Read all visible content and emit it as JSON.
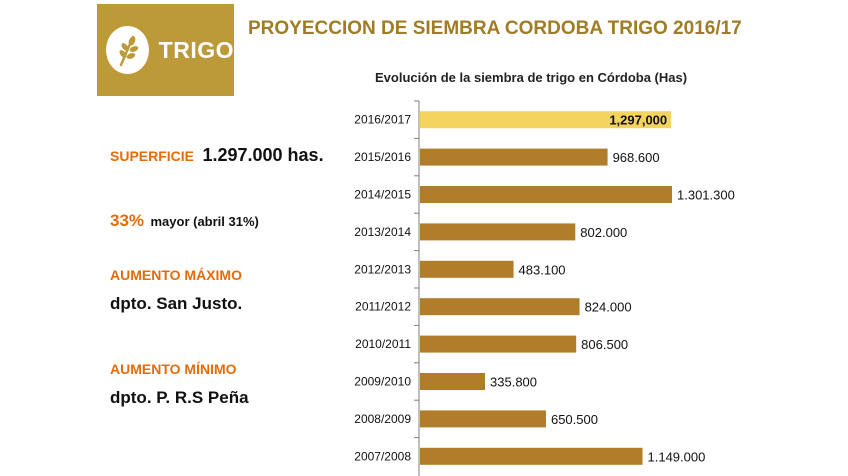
{
  "logo": {
    "label": "TRIGO",
    "icon": "wheat-icon"
  },
  "page_title": "PROYECCION DE SIEMBRA CORDOBA TRIGO 2016/17",
  "info": {
    "superficie_label": "SUPERFICIE",
    "superficie_value": "1.297.000 has.",
    "increase_pct": "33%",
    "increase_note": "mayor (abril 31%)",
    "max_label": "AUMENTO MÁXIMO",
    "max_value": "dpto. San Justo.",
    "min_label": "AUMENTO MÍNIMO",
    "min_value": "dpto. P. R.S Peña"
  },
  "colors": {
    "logo_bg": "#bc9a3a",
    "title": "#a07c25",
    "accent_orange": "#e46c0a",
    "bar": "#b07d2b",
    "bar_highlight": "#f4d35e",
    "axis": "#7f7f7f"
  },
  "chart_data": {
    "type": "bar",
    "orientation": "horizontal",
    "title": "Evolución de la siembra de trigo en Córdoba (Has)",
    "categories": [
      "2016/2017",
      "2015/2016",
      "2014/2015",
      "2013/2014",
      "2012/2013",
      "2011/2012",
      "2010/2011",
      "2009/2010",
      "2008/2009",
      "2007/2008"
    ],
    "values": [
      1297000,
      968600,
      1301300,
      802000,
      483100,
      824000,
      806500,
      335800,
      650500,
      1149000
    ],
    "data_labels": [
      "1,297,000",
      "968.600",
      "1.301.300",
      "802.000",
      "483.100",
      "824.000",
      "806.500",
      "335.800",
      "650.500",
      "1.149.000"
    ],
    "highlight_index": 0,
    "xlim": [
      0,
      1301300
    ],
    "grid": false,
    "legend": "none"
  }
}
